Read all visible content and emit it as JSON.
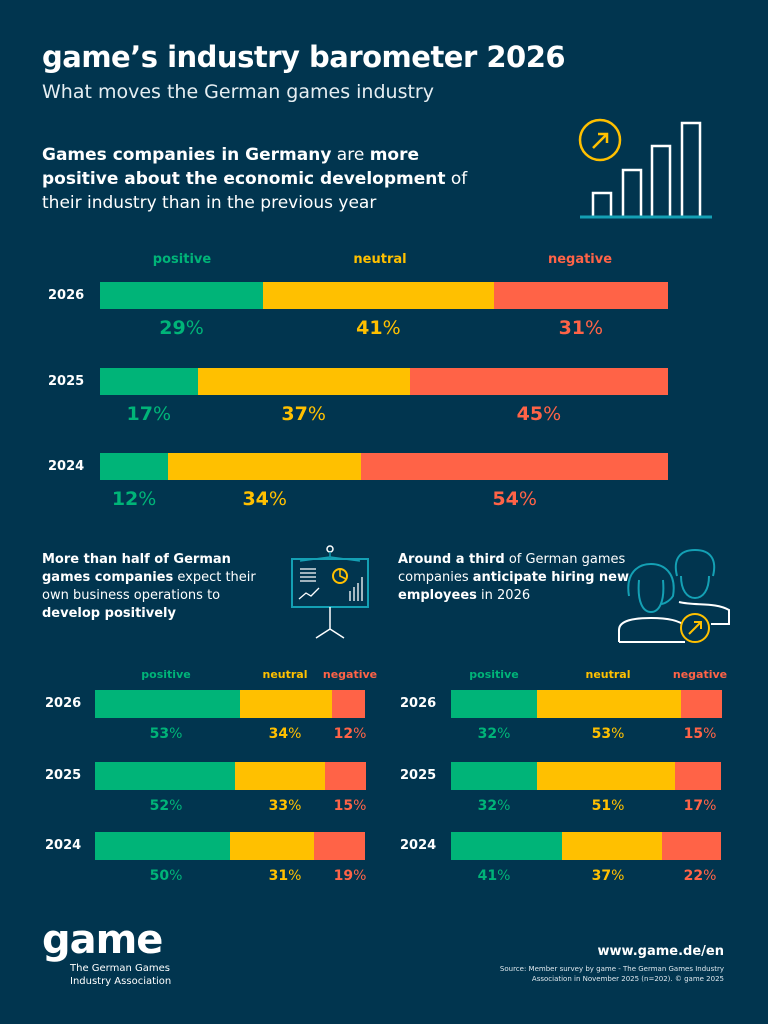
{
  "title": "game’s industry barometer 2026",
  "subtitle": "What moves the German games industry",
  "headline": [
    {
      "text": "Games companies in Germany",
      "bold": true
    },
    {
      "text": " are ",
      "bold": false
    },
    {
      "text": "more positive about the economic development",
      "bold": true
    },
    {
      "text": " of their industry than in the previous year",
      "bold": false
    }
  ],
  "left_text": [
    {
      "text": "More than half of German games companies",
      "bold": true
    },
    {
      "text": " expect their own business operations to ",
      "bold": false
    },
    {
      "text": "develop positively",
      "bold": true
    }
  ],
  "right_text": [
    {
      "text": "Around a third",
      "bold": true
    },
    {
      "text": " of German games companies ",
      "bold": false
    },
    {
      "text": "anticipate hiring new employees",
      "bold": true
    },
    {
      "text": " in 2026",
      "bold": false
    }
  ],
  "colors": {
    "background": "#01354f",
    "positive": "#00b478",
    "neutral": "#ffc000",
    "negative": "#ff6347",
    "accent_line": "#14a0b4"
  },
  "icons": [
    "bar-chart-growth-icon",
    "presentation-board-icon",
    "people-growth-icon"
  ],
  "chart_data": [
    {
      "type": "bar",
      "orientation": "horizontal",
      "stacked": true,
      "unit": "%",
      "legend": [
        "positive",
        "neutral",
        "negative"
      ],
      "categories": [
        "2026",
        "2025",
        "2024"
      ],
      "series": [
        {
          "name": "positive",
          "values": [
            29,
            17,
            12
          ]
        },
        {
          "name": "neutral",
          "values": [
            41,
            37,
            34
          ]
        },
        {
          "name": "negative",
          "values": [
            31,
            45,
            54
          ]
        }
      ]
    },
    {
      "type": "bar",
      "orientation": "horizontal",
      "stacked": true,
      "unit": "%",
      "legend": [
        "positive",
        "neutral",
        "negative"
      ],
      "categories": [
        "2026",
        "2025",
        "2024"
      ],
      "series": [
        {
          "name": "positive",
          "values": [
            53,
            52,
            50
          ]
        },
        {
          "name": "neutral",
          "values": [
            34,
            33,
            31
          ]
        },
        {
          "name": "negative",
          "values": [
            12,
            15,
            19
          ]
        }
      ]
    },
    {
      "type": "bar",
      "orientation": "horizontal",
      "stacked": true,
      "unit": "%",
      "legend": [
        "positive",
        "neutral",
        "negative"
      ],
      "categories": [
        "2026",
        "2025",
        "2024"
      ],
      "series": [
        {
          "name": "positive",
          "values": [
            32,
            32,
            41
          ]
        },
        {
          "name": "neutral",
          "values": [
            53,
            51,
            37
          ]
        },
        {
          "name": "negative",
          "values": [
            15,
            17,
            22
          ]
        }
      ]
    }
  ],
  "footer": {
    "logo": "game",
    "logo_sub_1": "The German Games",
    "logo_sub_2": "Industry Association",
    "url": "www.game.de/en",
    "source_1": "Source: Member survey by game - The German Games Industry",
    "source_2": "Association in November 2025 (n=202). © game 2025"
  }
}
